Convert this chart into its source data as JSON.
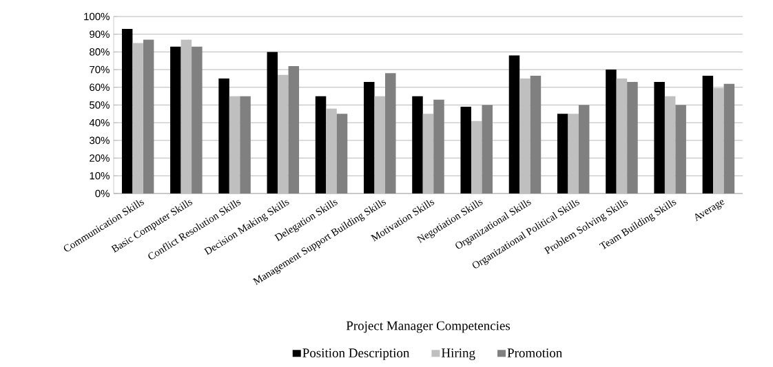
{
  "chart_data": {
    "type": "bar",
    "xlabel": "Project Manager Competencies",
    "categories": [
      "Communication Skills",
      "Basic Computer Skills",
      "Conflict Resolution Skills",
      "Decision Making Skills",
      "Delegation Skills",
      "Management Support Building Skills",
      "Motivation Skills",
      "Negotiation Skills",
      "Organizational Skills",
      "Organizational Political Skills",
      "Problem Solving Skills",
      "Team Building Skills",
      "Average"
    ],
    "series": [
      {
        "name": "Position Description",
        "color": "#000000",
        "values": [
          93,
          83,
          65,
          80,
          55,
          63,
          55,
          49,
          78,
          45,
          70,
          63,
          66.5
        ]
      },
      {
        "name": "Hiring",
        "color": "#bfbfbf",
        "values": [
          85,
          87,
          55,
          67,
          48,
          55,
          45,
          41,
          65,
          45,
          65,
          55,
          59.5
        ]
      },
      {
        "name": "Promotion",
        "color": "#808080",
        "values": [
          87,
          83,
          55,
          72,
          45,
          68,
          53,
          50,
          66.5,
          50,
          63,
          50,
          62
        ]
      }
    ],
    "ylim": [
      0,
      100
    ],
    "yticks": [
      {
        "value": 0,
        "label": "0%"
      },
      {
        "value": 10,
        "label": "10%"
      },
      {
        "value": 20,
        "label": "20%"
      },
      {
        "value": 30,
        "label": "30%"
      },
      {
        "value": 40,
        "label": "40%"
      },
      {
        "value": 50,
        "label": "50%"
      },
      {
        "value": 60,
        "label": "60%"
      },
      {
        "value": 70,
        "label": "70%"
      },
      {
        "value": 80,
        "label": "80%"
      },
      {
        "value": 90,
        "label": "90%"
      },
      {
        "value": 100,
        "label": "100%"
      }
    ],
    "grid": "y",
    "legend": "bottom"
  }
}
